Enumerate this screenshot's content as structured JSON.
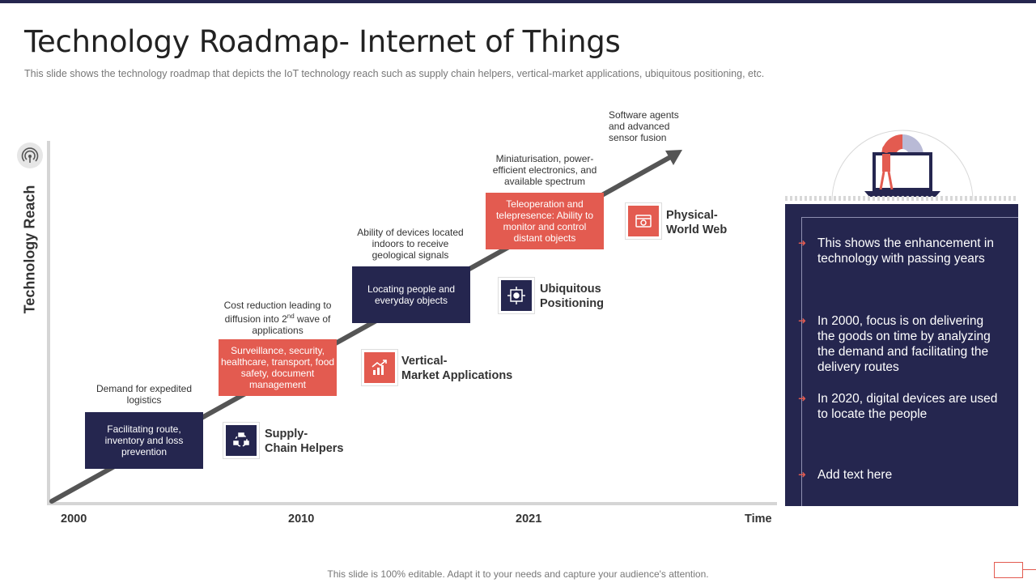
{
  "title": "Technology Roadmap- Internet of Things",
  "subtitle": "This slide shows the technology roadmap that depicts the IoT technology reach such as supply chain helpers, vertical-market  applications, ubiquitous positioning, etc.",
  "y_axis_label": "Technology Reach",
  "x_axis": {
    "ticks": [
      "2000",
      "2010",
      "2021"
    ],
    "end_label": "Time"
  },
  "steps": [
    {
      "note": "Demand for expedited logistics",
      "box": "Facilitating route, inventory and loss prevention",
      "milestone_line1": "Supply-",
      "milestone_line2": "Chain Helpers",
      "icon": "supply-chain-icon"
    },
    {
      "note_pre": "Cost reduction leading to diffusion into 2",
      "note_sup": "nd",
      "note_post": " wave of applications",
      "box": "Surveillance, security, healthcare, transport, food safety, document management",
      "milestone_line1": "Vertical-",
      "milestone_line2": "Market Applications",
      "icon": "growth-chart-icon"
    },
    {
      "note": "Ability of devices located indoors to receive geological signals",
      "box": "Locating people and everyday objects",
      "milestone_line1": "Ubiquitous",
      "milestone_line2": "Positioning",
      "icon": "location-chip-icon"
    },
    {
      "note": "Miniaturisation, power-efficient electronics, and available spectrum",
      "box": "Teleoperation and telepresence: Ability to monitor and control distant objects",
      "milestone_line1": "Physical-",
      "milestone_line2": "World Web",
      "icon": "web-browser-icon"
    }
  ],
  "top_note": "Software agents and advanced sensor fusion",
  "panel_bullets": [
    "This shows the enhancement  in technology with passing years",
    "In 2000, focus is on delivering the goods on time by analyzing the demand and facilitating the delivery routes",
    "In 2020, digital devices are used to locate the people",
    "Add text here"
  ],
  "footer": "This slide is 100% editable. Adapt it to your needs and capture your audience's attention.",
  "colors": {
    "navy": "#25264f",
    "red": "#e35b50",
    "axis": "#d5d5d5",
    "arrow": "#555555"
  }
}
